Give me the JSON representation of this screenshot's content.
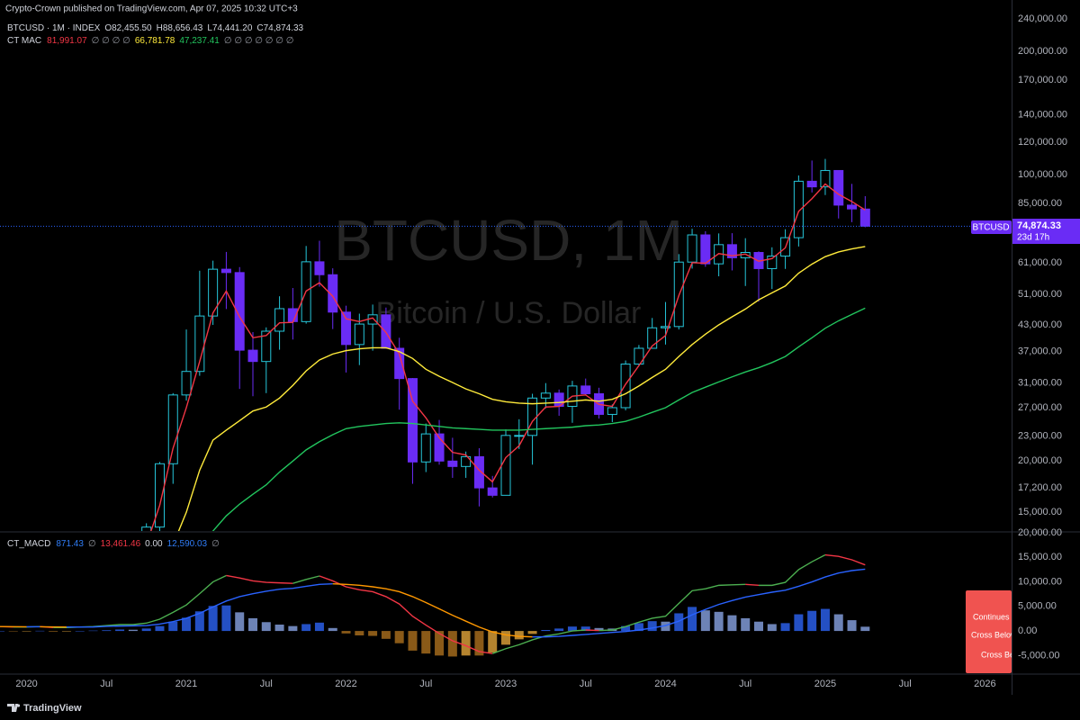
{
  "header": {
    "published": "Crypto-Crown published on TradingView.com, Apr 07, 2025 10:32 UTC+3",
    "symbol": "BTCUSD · 1M · INDEX",
    "ohlc": [
      "O82,455.50",
      "H88,656.43",
      "L74,441.20",
      "C74,874.33"
    ],
    "indicator": "CT MAC",
    "indicator_values": [
      "81,991.07",
      "∅ ∅ ∅ ∅",
      "66,781.78",
      "47,237.41",
      "∅ ∅ ∅ ∅ ∅ ∅ ∅"
    ],
    "watermark_title": "BTCUSD, 1M",
    "watermark_subtitle": "Bitcoin / U.S. Dollar"
  },
  "price_label": {
    "symbol": "BTCUSD",
    "price": "74,874.33",
    "countdown": "23d 17h"
  },
  "macd_legend": {
    "name": "CT_MACD",
    "values": [
      "871.43",
      "∅",
      "13,461.46",
      "0.00",
      "12,590.03",
      "∅"
    ]
  },
  "alerts": [
    "Continues",
    "Cross Below",
    "Cross Below"
  ],
  "footer": "TradingView",
  "chart_data": [
    {
      "type": "candlestick",
      "log_scale": true,
      "grid": false,
      "up_color": "#26c6da",
      "down_color": "#6a2cf5",
      "x": [
        "2020-10",
        "2020-11",
        "2020-12",
        "2021-01",
        "2021-02",
        "2021-03",
        "2021-04",
        "2021-05",
        "2021-06",
        "2021-07",
        "2021-08",
        "2021-09",
        "2021-10",
        "2021-11",
        "2021-12",
        "2022-01",
        "2022-02",
        "2022-03",
        "2022-04",
        "2022-05",
        "2022-06",
        "2022-07",
        "2022-08",
        "2022-09",
        "2022-10",
        "2022-11",
        "2022-12",
        "2023-01",
        "2023-02",
        "2023-03",
        "2023-04",
        "2023-05",
        "2023-06",
        "2023-07",
        "2023-08",
        "2023-09",
        "2023-10",
        "2023-11",
        "2023-12",
        "2024-01",
        "2024-02",
        "2024-03",
        "2024-04",
        "2024-05",
        "2024-06",
        "2024-07",
        "2024-08",
        "2024-09",
        "2024-10",
        "2024-11",
        "2024-12",
        "2025-01",
        "2025-02",
        "2025-03",
        "2025-04"
      ],
      "open": [
        10780,
        13800,
        19700,
        29000,
        33100,
        45200,
        58800,
        57700,
        37300,
        35000,
        41500,
        47100,
        43800,
        61300,
        57000,
        46200,
        38500,
        43200,
        45500,
        37700,
        31800,
        19900,
        23300,
        20000,
        19400,
        20500,
        17200,
        16500,
        23100,
        23100,
        28500,
        29300,
        27200,
        30500,
        29200,
        26000,
        27000,
        34500,
        37700,
        42300,
        42600,
        61200,
        71300,
        60600,
        67500,
        62700,
        64600,
        59000,
        63300,
        70200,
        96400,
        93400,
        102400,
        84300,
        82455.5
      ],
      "high": [
        14100,
        19900,
        29300,
        41900,
        58300,
        61700,
        64800,
        59500,
        41300,
        42400,
        50500,
        52900,
        67000,
        69000,
        59100,
        47900,
        45800,
        48200,
        47400,
        40000,
        31900,
        24700,
        25200,
        22800,
        21100,
        21500,
        18400,
        23900,
        25300,
        29200,
        31000,
        29900,
        31400,
        31800,
        30200,
        27500,
        35200,
        38400,
        44700,
        48900,
        64000,
        73800,
        72800,
        71900,
        72000,
        70000,
        65000,
        66500,
        73600,
        99600,
        108300,
        109300,
        102500,
        95000,
        88656.43
      ],
      "low": [
        10430,
        13200,
        17600,
        28100,
        32300,
        43000,
        47000,
        30000,
        28800,
        29300,
        37400,
        39600,
        43300,
        53300,
        42000,
        32900,
        34300,
        37200,
        37700,
        26700,
        17600,
        18800,
        19600,
        18200,
        18200,
        15500,
        16300,
        16500,
        21400,
        19600,
        26900,
        25800,
        24800,
        28900,
        25400,
        24900,
        26600,
        34100,
        37600,
        38500,
        41900,
        59000,
        59600,
        56500,
        58400,
        53500,
        49000,
        52600,
        58900,
        66800,
        90500,
        89200,
        78200,
        76600,
        74441.2
      ],
      "close": [
        13800,
        19700,
        29000,
        33100,
        45200,
        58800,
        57700,
        37300,
        35000,
        41500,
        47100,
        43800,
        61300,
        57000,
        46200,
        38500,
        43200,
        45500,
        37700,
        31800,
        19900,
        23300,
        20000,
        19400,
        20500,
        17200,
        16500,
        23100,
        23100,
        28500,
        29300,
        27200,
        30500,
        29200,
        26000,
        27000,
        34500,
        37700,
        42300,
        42600,
        61200,
        71300,
        60600,
        67500,
        62700,
        64600,
        59000,
        63300,
        70200,
        96400,
        93400,
        102400,
        84300,
        82500,
        74874.33
      ],
      "series": [
        {
          "color": "#f23645",
          "values": [
            12500,
            15600,
            21500,
            27000,
            35000,
            46000,
            52000,
            45000,
            40000,
            40500,
            43500,
            43600,
            52000,
            54500,
            50500,
            44500,
            43800,
            44700,
            41200,
            36500,
            28000,
            25500,
            22800,
            21000,
            20700,
            19000,
            17800,
            20400,
            21800,
            25000,
            27100,
            27200,
            28800,
            29000,
            27500,
            27200,
            30800,
            34200,
            38200,
            40500,
            50700,
            61000,
            60800,
            64200,
            63400,
            64000,
            61500,
            62400,
            66300,
            81400,
            87400,
            94900,
            89600,
            86000,
            81991.07
          ]
        },
        {
          "color": "#ffeb3b",
          "values": [
            9000,
            10500,
            12500,
            15000,
            19000,
            22500,
            23800,
            25100,
            26500,
            27100,
            28500,
            30600,
            33200,
            35300,
            36500,
            37200,
            37600,
            37800,
            37800,
            37000,
            35600,
            33500,
            32200,
            31100,
            30000,
            29200,
            28300,
            27900,
            27700,
            27600,
            27700,
            27800,
            28000,
            28200,
            28000,
            28300,
            29200,
            30500,
            32000,
            33500,
            36000,
            38500,
            40800,
            43000,
            45000,
            47000,
            49500,
            51500,
            53500,
            57500,
            60500,
            63100,
            64800,
            65900,
            66781.78
          ]
        },
        {
          "color": "#22c55e",
          "values": [
            7500,
            8200,
            9200,
            10500,
            12000,
            13500,
            14700,
            15700,
            16600,
            17500,
            18800,
            20000,
            21300,
            22300,
            23200,
            24000,
            24300,
            24500,
            24700,
            24800,
            24700,
            24500,
            24300,
            24100,
            24000,
            23900,
            23800,
            23800,
            23800,
            23900,
            24000,
            24100,
            24200,
            24400,
            24500,
            24700,
            25000,
            25600,
            26300,
            27000,
            28200,
            29400,
            30300,
            31200,
            32100,
            33000,
            33800,
            34800,
            36000,
            38000,
            40000,
            42200,
            44000,
            45600,
            47237.41
          ]
        }
      ],
      "ylim": [
        13500,
        267000
      ],
      "yticks": [
        {
          "value": 240000,
          "label": "240,000.00"
        },
        {
          "value": 200000,
          "label": "200,000.00"
        },
        {
          "value": 170000,
          "label": "170,000.00"
        },
        {
          "value": 140000,
          "label": "140,000.00"
        },
        {
          "value": 120000,
          "label": "120,000.00"
        },
        {
          "value": 100000,
          "label": "100,000.00"
        },
        {
          "value": 85000,
          "label": "85,000.00"
        },
        {
          "value": 61000,
          "label": "61,000.00"
        },
        {
          "value": 51000,
          "label": "51,000.00"
        },
        {
          "value": 43000,
          "label": "43,000.00"
        },
        {
          "value": 37000,
          "label": "37,000.00"
        },
        {
          "value": 31000,
          "label": "31,000.00"
        },
        {
          "value": 27000,
          "label": "27,000.00"
        },
        {
          "value": 23000,
          "label": "23,000.00"
        },
        {
          "value": 20000,
          "label": "20,000.00"
        },
        {
          "value": 17200,
          "label": "17,200.00"
        },
        {
          "value": 15000,
          "label": "15,000.00"
        }
      ]
    },
    {
      "type": "macd",
      "grid": false,
      "x": [
        "2019-11",
        "2019-12",
        "2020-01",
        "2020-02",
        "2020-03",
        "2020-04",
        "2020-05",
        "2020-06",
        "2020-07",
        "2020-08",
        "2020-09",
        "2020-10",
        "2020-11",
        "2020-12",
        "2021-01",
        "2021-02",
        "2021-03",
        "2021-04",
        "2021-05",
        "2021-06",
        "2021-07",
        "2021-08",
        "2021-09",
        "2021-10",
        "2021-11",
        "2021-12",
        "2022-01",
        "2022-02",
        "2022-03",
        "2022-04",
        "2022-05",
        "2022-06",
        "2022-07",
        "2022-08",
        "2022-09",
        "2022-10",
        "2022-11",
        "2022-12",
        "2023-01",
        "2023-02",
        "2023-03",
        "2023-04",
        "2023-05",
        "2023-06",
        "2023-07",
        "2023-08",
        "2023-09",
        "2023-10",
        "2023-11",
        "2023-12",
        "2024-01",
        "2024-02",
        "2024-03",
        "2024-04",
        "2024-05",
        "2024-06",
        "2024-07",
        "2024-08",
        "2024-09",
        "2024-10",
        "2024-11",
        "2024-12",
        "2025-01",
        "2025-02",
        "2025-03",
        "2025-04"
      ],
      "series": [
        {
          "up_color": "#4caf50",
          "down_color": "#f23645",
          "values": [
            900,
            800,
            800,
            900,
            700,
            700,
            800,
            900,
            1100,
            1300,
            1300,
            1600,
            2400,
            3800,
            5300,
            7600,
            10000,
            11300,
            10800,
            10200,
            9900,
            9800,
            9700,
            10500,
            11200,
            10200,
            9000,
            8400,
            8000,
            7000,
            5500,
            3000,
            1200,
            -500,
            -2000,
            -3000,
            -4200,
            -4600,
            -3600,
            -2800,
            -1800,
            -1000,
            -600,
            0,
            200,
            100,
            200,
            900,
            1800,
            2600,
            3000,
            5600,
            8200,
            8600,
            9300,
            9400,
            9500,
            9300,
            9300,
            9900,
            12500,
            14100,
            15500,
            15200,
            14500,
            13461.46
          ]
        },
        {
          "up_color": "#2962ff",
          "down_color": "#ff9800",
          "values": [
            900,
            880,
            860,
            860,
            830,
            800,
            800,
            820,
            950,
            1000,
            1050,
            1100,
            1400,
            1900,
            2600,
            3600,
            4900,
            6100,
            7000,
            7600,
            8100,
            8500,
            8700,
            9100,
            9500,
            9600,
            9500,
            9300,
            9000,
            8600,
            8000,
            7000,
            5800,
            4500,
            3200,
            2000,
            800,
            -200,
            -800,
            -1100,
            -1200,
            -1200,
            -1100,
            -900,
            -700,
            -500,
            -300,
            -100,
            200,
            600,
            1100,
            2000,
            3300,
            4400,
            5400,
            6200,
            6900,
            7400,
            7900,
            8300,
            9100,
            10000,
            11000,
            11800,
            12300,
            12590.03
          ]
        }
      ],
      "histogram": {
        "colors": {
          "positive_rising": "#2450c4",
          "positive_falling": "#6d83b6",
          "negative_falling": "#8a5a18",
          "negative_rising": "#b5842f"
        },
        "values": [
          0,
          -80,
          -60,
          40,
          -130,
          -100,
          0,
          80,
          150,
          300,
          250,
          500,
          1000,
          1900,
          2700,
          4000,
          5100,
          5200,
          3800,
          2600,
          1800,
          1300,
          1000,
          1400,
          1700,
          600,
          -500,
          -900,
          -1000,
          -1600,
          -2500,
          -4000,
          -4600,
          -5000,
          -5200,
          -5000,
          -5000,
          -4400,
          -2800,
          -1700,
          -600,
          200,
          500,
          900,
          900,
          600,
          500,
          1000,
          1600,
          2000,
          1900,
          3600,
          4900,
          4200,
          3900,
          3200,
          2600,
          1900,
          1400,
          1600,
          3400,
          4100,
          4500,
          3400,
          2200,
          871.43
        ]
      },
      "ylim": [
        -8600,
        20000
      ],
      "yticks": [
        {
          "value": 20000,
          "label": "20,000.00"
        },
        {
          "value": 15000,
          "label": "15,000.00"
        },
        {
          "value": 10000,
          "label": "10,000.00"
        },
        {
          "value": 5000,
          "label": "5,000.00"
        },
        {
          "value": 0,
          "label": "0.00"
        },
        {
          "value": -5000,
          "label": "-5,000.00"
        }
      ],
      "xlim": [
        "2019-11",
        "2026-03"
      ],
      "xticks": [
        {
          "value": "2020-01",
          "label": "2020"
        },
        {
          "value": "2020-07",
          "label": "Jul"
        },
        {
          "value": "2021-01",
          "label": "2021"
        },
        {
          "value": "2021-07",
          "label": "Jul"
        },
        {
          "value": "2022-01",
          "label": "2022"
        },
        {
          "value": "2022-07",
          "label": "Jul"
        },
        {
          "value": "2023-01",
          "label": "2023"
        },
        {
          "value": "2023-07",
          "label": "Jul"
        },
        {
          "value": "2024-01",
          "label": "2024"
        },
        {
          "value": "2024-07",
          "label": "Jul"
        },
        {
          "value": "2025-01",
          "label": "2025"
        },
        {
          "value": "2025-07",
          "label": "Jul"
        },
        {
          "value": "2026-01",
          "label": "2026"
        }
      ]
    }
  ]
}
